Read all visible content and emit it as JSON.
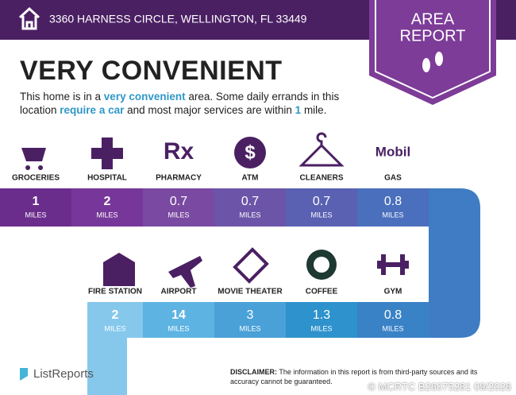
{
  "header": {
    "address": "3360 HARNESS CIRCLE, WELLINGTON, FL 33449"
  },
  "badge": {
    "line1": "AREA",
    "line2": "REPORT"
  },
  "title": "VERY CONVENIENT",
  "description": [
    {
      "text": "This home is in a ",
      "highlight": false
    },
    {
      "text": "very convenient",
      "highlight": true
    },
    {
      "text": " area. Some daily errands in this location ",
      "highlight": false
    },
    {
      "text": "require a car",
      "highlight": true
    },
    {
      "text": " and most major services are within ",
      "highlight": false
    },
    {
      "text": "1",
      "highlight": true
    },
    {
      "text": " mile.",
      "highlight": false
    }
  ],
  "rows": [
    [
      {
        "label": "GROCERIES",
        "distance": "1",
        "unit": "MILES"
      },
      {
        "label": "HOSPITAL",
        "distance": "2",
        "unit": "MILES"
      },
      {
        "label": "PHARMACY",
        "distance": "0.7",
        "unit": "MILES",
        "icon_text": "Rx"
      },
      {
        "label": "ATM",
        "distance": "0.7",
        "unit": "MILES",
        "icon_text": "$"
      },
      {
        "label": "CLEANERS",
        "distance": "0.7",
        "unit": "MILES"
      },
      {
        "label": "GAS",
        "distance": "0.8",
        "unit": "MILES",
        "icon_text": "Mobil"
      }
    ],
    [
      {
        "label": "FIRE STATION",
        "distance": "2",
        "unit": "MILES"
      },
      {
        "label": "AIRPORT",
        "distance": "14",
        "unit": "MILES"
      },
      {
        "label": "MOVIE THEATER",
        "distance": "3",
        "unit": "MILES"
      },
      {
        "label": "COFFEE",
        "distance": "1.3",
        "unit": "MILES"
      },
      {
        "label": "GYM",
        "distance": "0.8",
        "unit": "MILES"
      }
    ]
  ],
  "footer": {
    "brand": "ListReports",
    "disclaimer_label": "DISCLAIMER:",
    "disclaimer_text": " The information in this report is from third-party sources and its accuracy cannot be guaranteed.",
    "watermark": "© MCRTC B26075281 09/2026"
  }
}
